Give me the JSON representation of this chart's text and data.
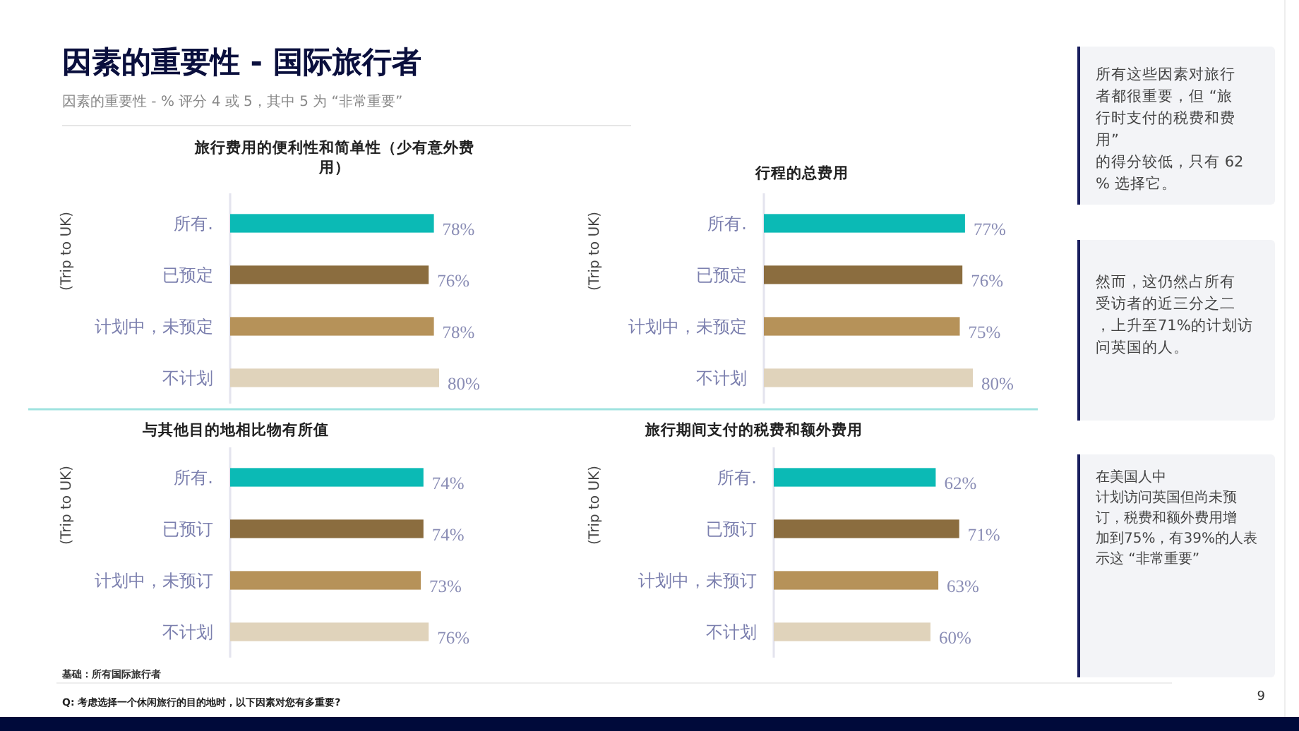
{
  "chart_data": [
    {
      "type": "bar",
      "orientation": "horizontal",
      "title": "旅行费用的便利性和简单性（少有意外费用）",
      "ylabel": "(Trip to UK)",
      "categories": [
        "所有.",
        "已预定",
        "计划中，未预定",
        "不计划"
      ],
      "values": [
        78,
        76,
        78,
        80
      ],
      "value_labels": [
        "78%",
        "76%",
        "78%",
        "80%"
      ],
      "colors": [
        "#0bbab5",
        "#8b6d3f",
        "#b69259",
        "#e0d3bb"
      ]
    },
    {
      "type": "bar",
      "orientation": "horizontal",
      "title": "行程的总费用",
      "ylabel": "(Trip to UK)",
      "categories": [
        "所有.",
        "已预定",
        "计划中，未预定",
        "不计划"
      ],
      "values": [
        77,
        76,
        75,
        80
      ],
      "value_labels": [
        "77%",
        "76%",
        "75%",
        "80%"
      ],
      "colors": [
        "#0bbab5",
        "#8b6d3f",
        "#b69259",
        "#e0d3bb"
      ]
    },
    {
      "type": "bar",
      "orientation": "horizontal",
      "title": "与其他目的地相比物有所值",
      "ylabel": "(Trip to UK)",
      "categories": [
        "所有.",
        "已预订",
        "计划中，未预订",
        "不计划"
      ],
      "values": [
        74,
        74,
        73,
        76
      ],
      "value_labels": [
        "74%",
        "74%",
        "73%",
        "76%"
      ],
      "colors": [
        "#0bbab5",
        "#8b6d3f",
        "#b69259",
        "#e0d3bb"
      ]
    },
    {
      "type": "bar",
      "orientation": "horizontal",
      "title": "旅行期间支付的税费和额外费用",
      "ylabel": "(Trip to UK)",
      "categories": [
        "所有.",
        "已预订",
        "计划中，未预订",
        "不计划"
      ],
      "values": [
        62,
        71,
        63,
        60
      ],
      "value_labels": [
        "62%",
        "71%",
        "63%",
        "60%"
      ],
      "colors": [
        "#0bbab5",
        "#8b6d3f",
        "#b69259",
        "#e0d3bb"
      ]
    },
    {
      "type": "other",
      "title": "因素的重要性 - 国际旅行者",
      "subtitle": "因素的重要性 - % 评分 4 或 5，其中 5 为 “非常重要”",
      "annotations": [
        "所有这些因素对旅行者都很重要，但 “旅行时支付的税费和费用”的得分较低，只有 62% 选择它。",
        "然而，这仍然占所有受访者的近三分之二，上升至71%的计划访问英国的人。",
        "在美国人中计划访问英国但尚未预订，税费和额外费用增加到75%，有39%的人表示这 “非常重要”",
        "基础：所有国际旅行者",
        "Q: 考虑选择一个休闲旅行的目的地时，以下因素对您有多重要?",
        "9"
      ]
    }
  ]
}
